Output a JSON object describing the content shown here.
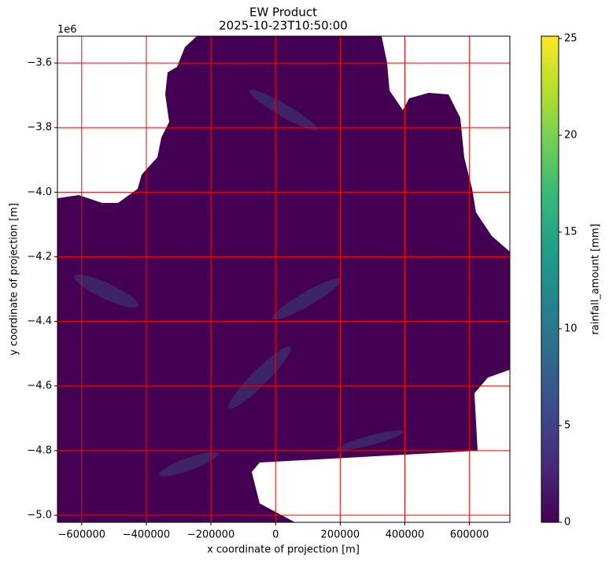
{
  "chart_data": {
    "type": "heatmap",
    "title": "EW Product",
    "subtitle": "2025-10-23T10:50:00",
    "x_label": "x coordinate of projection [m]",
    "y_label": "y coordinate of projection [m]",
    "y_offset_label": "1e6",
    "xlim": [
      -675000,
      725000
    ],
    "ylim": [
      -5022000,
      -3517000
    ],
    "xticks": [
      {
        "value": -600000,
        "label": "−600000"
      },
      {
        "value": -400000,
        "label": "−400000"
      },
      {
        "value": -200000,
        "label": "−200000"
      },
      0,
      200000,
      400000,
      600000
    ],
    "yticks": [
      {
        "value": -3600000,
        "label": "−3.6"
      },
      {
        "value": -3800000,
        "label": "−3.8"
      },
      {
        "value": -4000000,
        "label": "−4.0"
      },
      {
        "value": -4200000,
        "label": "−4.2"
      },
      {
        "value": -4400000,
        "label": "−4.4"
      },
      {
        "value": -4600000,
        "label": "−4.6"
      },
      {
        "value": -4800000,
        "label": "−4.8"
      },
      {
        "value": -5000000,
        "label": "−5.0"
      }
    ],
    "grid": true,
    "grid_color": "#ff0000",
    "colormap": "viridis",
    "colorbar_label": "rainfall_amount [mm]",
    "clim": [
      0,
      25.12
    ],
    "cticks": [
      0,
      5,
      10,
      15,
      20,
      25
    ]
  }
}
